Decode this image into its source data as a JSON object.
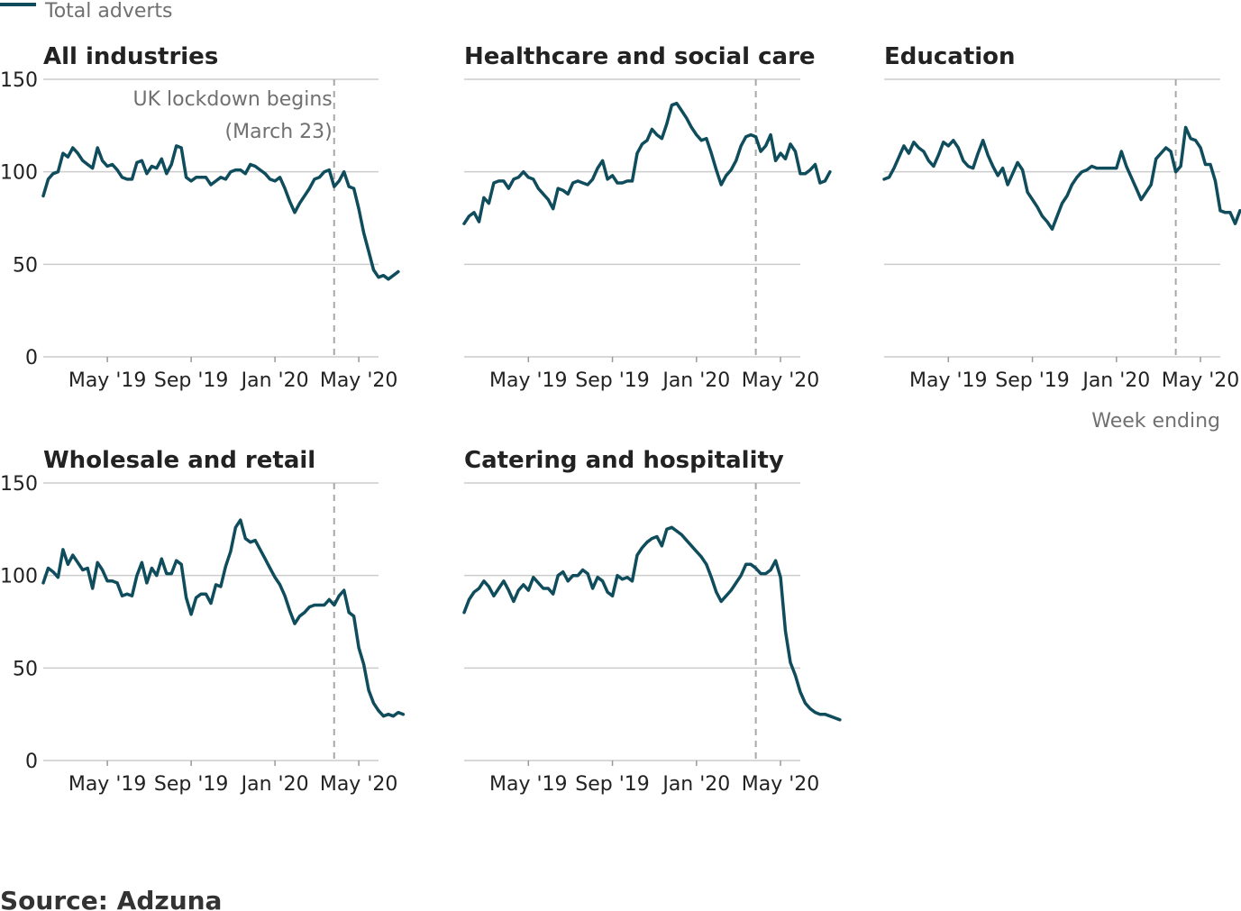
{
  "legend": {
    "label": "Total adverts",
    "color": "#0f4c5c"
  },
  "source": "Source: Adzuna",
  "annotation": {
    "line1": "UK lockdown begins",
    "line2": "(March 23)"
  },
  "x_axis_title": "Week ending",
  "colors": {
    "line": "#0f4c5c",
    "grid": "#cccccc",
    "lockdown": "#a8a8a8",
    "text": "#222222",
    "muted": "#707070"
  },
  "chart_data": [
    {
      "type": "line",
      "title": "All industries",
      "ylim": [
        0,
        150
      ],
      "yticks": [
        0,
        50,
        100,
        150
      ],
      "xticks": [
        {
          "x": 13,
          "label": "May '19"
        },
        {
          "x": 30,
          "label": "Sep '19"
        },
        {
          "x": 47,
          "label": "Jan '20"
        },
        {
          "x": 64,
          "label": "May '20"
        }
      ],
      "lockdown_week": 59,
      "series": [
        {
          "values": [
            87,
            96,
            99,
            100,
            110,
            108,
            113,
            110,
            106,
            104,
            102,
            113,
            106,
            103,
            104,
            101,
            97,
            96,
            96,
            105,
            106,
            99,
            103,
            102,
            107,
            99,
            104,
            114,
            113,
            97,
            95,
            97,
            97,
            97,
            93,
            95,
            97,
            96,
            100,
            101,
            101,
            99,
            104,
            103,
            101,
            99,
            96,
            95,
            97,
            91,
            84,
            78,
            83,
            87,
            91,
            96,
            97,
            100,
            101,
            92,
            95,
            100,
            92,
            91,
            80,
            67,
            57,
            47,
            43,
            44,
            42,
            44,
            46
          ]
        }
      ]
    },
    {
      "type": "line",
      "title": "Healthcare and social care",
      "ylim": [
        0,
        150
      ],
      "yticks": [
        0,
        50,
        100,
        150
      ],
      "xticks": [
        {
          "x": 13,
          "label": "May '19"
        },
        {
          "x": 30,
          "label": "Sep '19"
        },
        {
          "x": 47,
          "label": "Jan '20"
        },
        {
          "x": 64,
          "label": "May '20"
        }
      ],
      "lockdown_week": 59,
      "series": [
        {
          "values": [
            72,
            76,
            78,
            73,
            86,
            83,
            94,
            95,
            95,
            91,
            96,
            97,
            100,
            97,
            96,
            91,
            88,
            85,
            80,
            91,
            90,
            88,
            94,
            95,
            94,
            93,
            96,
            102,
            106,
            96,
            98,
            94,
            94,
            95,
            95,
            110,
            115,
            117,
            123,
            120,
            118,
            126,
            136,
            137,
            133,
            129,
            124,
            120,
            117,
            118,
            110,
            101,
            93,
            98,
            101,
            106,
            114,
            119,
            120,
            119,
            111,
            114,
            120,
            106,
            110,
            107,
            115,
            111,
            99,
            99,
            101,
            104,
            94,
            95,
            100
          ]
        }
      ]
    },
    {
      "type": "line",
      "title": "Education",
      "ylim": [
        0,
        150
      ],
      "yticks": [
        0,
        50,
        100,
        150
      ],
      "xticks": [
        {
          "x": 13,
          "label": "May '19"
        },
        {
          "x": 30,
          "label": "Sep '19"
        },
        {
          "x": 47,
          "label": "Jan '20"
        },
        {
          "x": 64,
          "label": "May '20"
        }
      ],
      "lockdown_week": 59,
      "series": [
        {
          "values": [
            96,
            97,
            102,
            108,
            114,
            110,
            116,
            113,
            111,
            106,
            103,
            109,
            116,
            114,
            117,
            113,
            106,
            103,
            102,
            110,
            117,
            109,
            103,
            98,
            102,
            93,
            99,
            105,
            101,
            89,
            85,
            81,
            76,
            73,
            69,
            76,
            83,
            87,
            93,
            97,
            100,
            101,
            103,
            102,
            102,
            102,
            102,
            102,
            111,
            103,
            97,
            91,
            85,
            89,
            93,
            107,
            110,
            113,
            111,
            100,
            103,
            124,
            118,
            117,
            113,
            104,
            104,
            95,
            79,
            78,
            78,
            72,
            79,
            78
          ]
        }
      ]
    },
    {
      "type": "line",
      "title": "Wholesale and retail",
      "ylim": [
        0,
        150
      ],
      "yticks": [
        0,
        50,
        100,
        150
      ],
      "xticks": [
        {
          "x": 13,
          "label": "May '19"
        },
        {
          "x": 30,
          "label": "Sep '19"
        },
        {
          "x": 47,
          "label": "Jan '20"
        },
        {
          "x": 64,
          "label": "May '20"
        }
      ],
      "lockdown_week": 59,
      "series": [
        {
          "values": [
            96,
            104,
            102,
            99,
            114,
            106,
            111,
            107,
            103,
            104,
            93,
            107,
            103,
            97,
            97,
            96,
            89,
            90,
            89,
            100,
            107,
            96,
            104,
            100,
            109,
            101,
            101,
            108,
            106,
            88,
            79,
            88,
            90,
            90,
            85,
            95,
            94,
            105,
            113,
            126,
            130,
            120,
            118,
            119,
            114,
            109,
            104,
            99,
            95,
            89,
            81,
            74,
            78,
            80,
            83,
            84,
            84,
            84,
            87,
            84,
            89,
            92,
            80,
            78,
            61,
            52,
            38,
            31,
            27,
            24,
            25,
            24,
            26,
            25
          ]
        }
      ]
    },
    {
      "type": "line",
      "title": "Catering and hospitality",
      "ylim": [
        0,
        150
      ],
      "yticks": [
        0,
        50,
        100,
        150
      ],
      "xticks": [
        {
          "x": 13,
          "label": "May '19"
        },
        {
          "x": 30,
          "label": "Sep '19"
        },
        {
          "x": 47,
          "label": "Jan '20"
        },
        {
          "x": 64,
          "label": "May '20"
        }
      ],
      "lockdown_week": 59,
      "series": [
        {
          "values": [
            80,
            87,
            91,
            93,
            97,
            94,
            89,
            93,
            97,
            92,
            86,
            92,
            95,
            92,
            99,
            96,
            93,
            93,
            90,
            100,
            102,
            97,
            100,
            100,
            103,
            101,
            93,
            99,
            97,
            91,
            89,
            100,
            98,
            99,
            97,
            111,
            115,
            118,
            120,
            121,
            116,
            125,
            126,
            124,
            122,
            119,
            116,
            113,
            110,
            106,
            99,
            91,
            86,
            89,
            92,
            96,
            100,
            106,
            106,
            104,
            101,
            101,
            103,
            108,
            99,
            70,
            53,
            46,
            37,
            31,
            28,
            26,
            25,
            25,
            24,
            23,
            22
          ]
        }
      ]
    }
  ]
}
